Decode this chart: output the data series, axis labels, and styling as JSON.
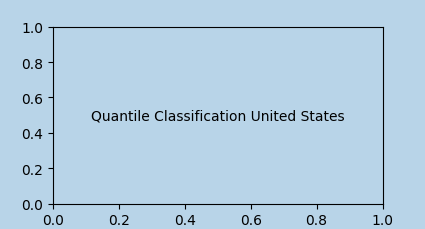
{
  "title": "Quantile Classification United States",
  "background_color": "#b8d4e8",
  "border_color": "#888888",
  "state_colors": {
    "Washington": "#c1440e",
    "Oregon": "#c1440e",
    "California": "#8b0000",
    "Idaho": "#c1440e",
    "Nevada": "#8b0000",
    "Arizona": "#c1440e",
    "Montana": "#8b0000",
    "Wyoming": "#8b0000",
    "Colorado": "#c1440e",
    "Utah": "#c1440e",
    "New Mexico": "#8b0000",
    "North Dakota": "#8b0000",
    "South Dakota": "#8b0000",
    "Nebraska": "#c1440e",
    "Kansas": "#c1440e",
    "Oklahoma": "#8b0000",
    "Texas": "#8b0000",
    "Minnesota": "#8b0000",
    "Iowa": "#e07b39",
    "Missouri": "#e07b39",
    "Wisconsin": "#5c0a0a",
    "Michigan": "#8b0000",
    "Illinois": "#e07b39",
    "Indiana": "#e07b39",
    "Ohio": "#e07b39",
    "Kentucky": "#e8a44a",
    "Tennessee": "#e8a44a",
    "Arkansas": "#e8a44a",
    "Louisiana": "#e8a44a",
    "Mississippi": "#f5c97a",
    "Alabama": "#f5c97a",
    "Georgia": "#e8a44a",
    "Florida": "#e8a44a",
    "South Carolina": "#e8a44a",
    "North Carolina": "#e8a44a",
    "Virginia": "#f5c97a",
    "West Virginia": "#f0e68c",
    "Maryland": "#f0e68c",
    "Delaware": "#f5c97a",
    "Pennsylvania": "#e8a44a",
    "New Jersey": "#f5c97a",
    "New York": "#e8a44a",
    "Connecticut": "#f5c97a",
    "Rhode Island": "#f5c97a",
    "Massachusetts": "#f5c97a",
    "Vermont": "#f5c97a",
    "New Hampshire": "#f5c97a",
    "Maine": "#e8a44a",
    "Alaska": null,
    "Hawaii": null,
    "District of Columbia": null
  },
  "figsize": [
    4.25,
    2.3
  ],
  "dpi": 100,
  "xlim": [
    -125,
    -66
  ],
  "ylim": [
    24,
    50
  ]
}
